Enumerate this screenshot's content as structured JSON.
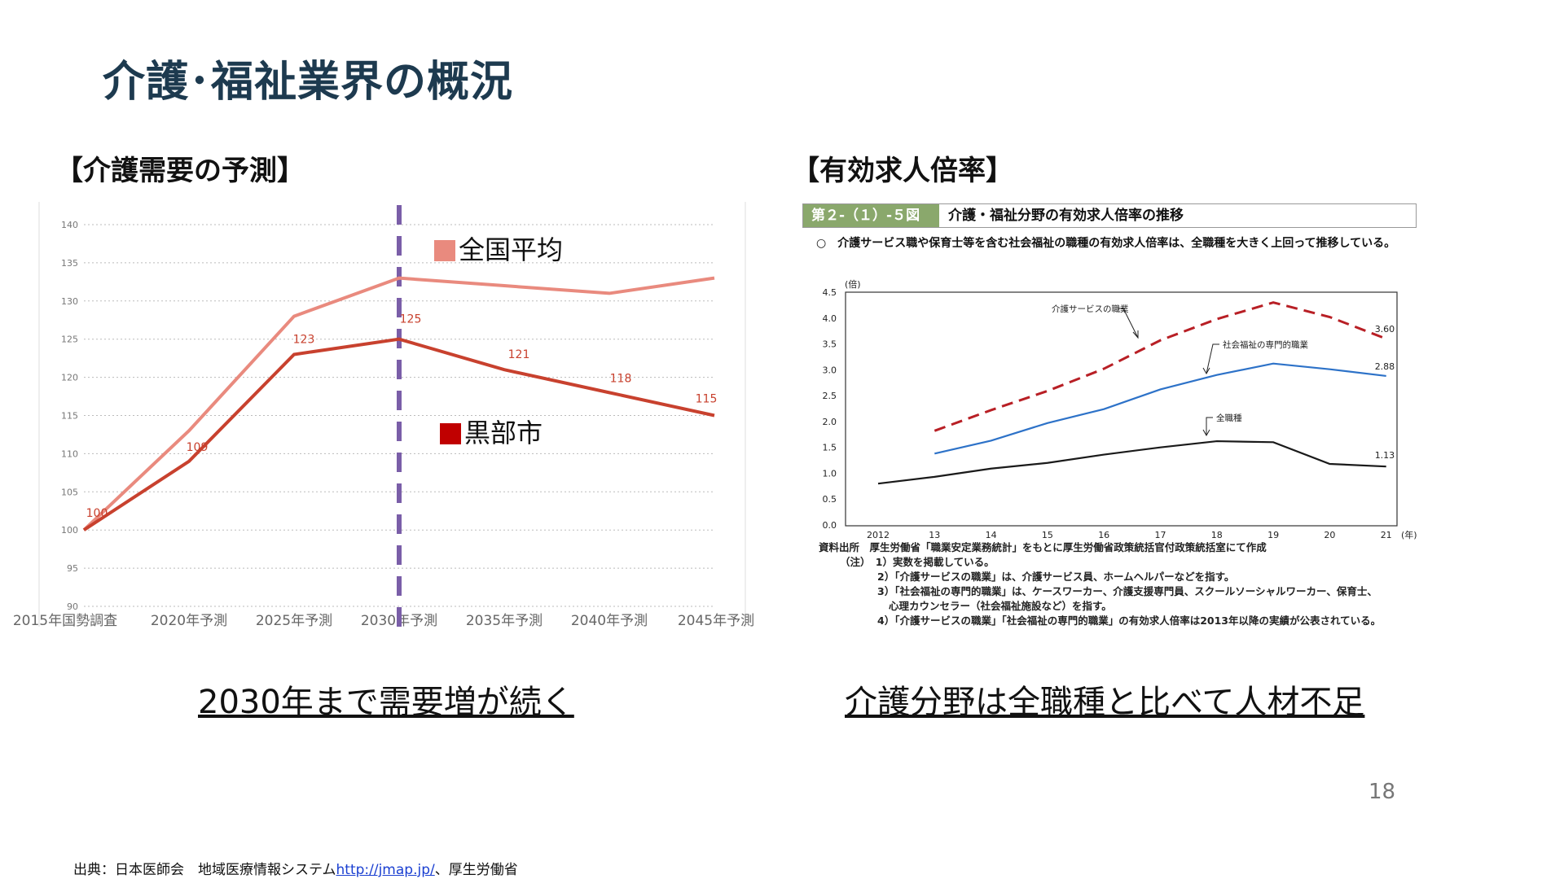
{
  "slide": {
    "title": "介護･福祉業界の概況",
    "page_number": "18"
  },
  "left": {
    "heading": "【介護需要の予測】",
    "caption": "2030年まで需要増が続く",
    "legend_national": "全国平均",
    "legend_city": "黒部市"
  },
  "right": {
    "heading": "【有効求人倍率】",
    "caption": "介護分野は全職種と比べて人材不足",
    "figure_number": "第２-（１）-５図",
    "figure_title": "介護・福祉分野の有効求人倍率の推移",
    "description": "○　介護サービス職や保育士等を含む社会福祉の職種の有効求人倍率は、全職種を大きく上回って推移している。",
    "unit_label": "(倍)",
    "notes": [
      "資料出所　厚生労働省「職業安定業務統計」をもとに厚生労働省政策統括官付政策統括室にて作成",
      "（注）　1）実数を掲載している。",
      "2）「介護サービスの職業」は、介護サービス員、ホームヘルパーなどを指す。",
      "3）「社会福祉の専門的職業」は、ケースワーカー、介護支援専門員、スクールソーシャルワーカー、保育士、",
      "心理カウンセラー（社会福祉施設など）を指す。",
      "4）「介護サービスの職業」「社会福祉の専門的職業」の有効求人倍率は2013年以降の実績が公表されている。"
    ]
  },
  "source": {
    "prefix": "出典：日本医師会　地域医療情報システム",
    "link": "http://jmap.jp/",
    "suffix": "、厚生労働省"
  },
  "colors": {
    "national": "#e98a7e",
    "city": "#c8412e",
    "divider": "#7a5ea8",
    "care_service": "#b81f25",
    "social_welfare": "#2d72c8",
    "all_jobs": "#1a1a1a"
  },
  "chart_data": [
    {
      "type": "line",
      "title": "介護需要の予測",
      "categories": [
        "2015年国勢調査",
        "2020年予測",
        "2025年予測",
        "2030年予測",
        "2035年予測",
        "2040年予測",
        "2045年予測"
      ],
      "series": [
        {
          "name": "全国平均",
          "values": [
            100,
            113,
            128,
            133,
            132,
            131,
            133
          ]
        },
        {
          "name": "黒部市",
          "values": [
            100,
            109,
            123,
            125,
            121,
            118,
            115
          ]
        }
      ],
      "data_labels": [
        "100",
        "109",
        "123",
        "125",
        "121",
        "118",
        "115"
      ],
      "ylim": [
        90,
        140
      ],
      "yticks": [
        90,
        95,
        100,
        105,
        110,
        115,
        120,
        125,
        130,
        135,
        140
      ],
      "divider_category": "2030年予測"
    },
    {
      "type": "line",
      "title": "介護・福祉分野の有効求人倍率の推移",
      "x": [
        "2012",
        "13",
        "14",
        "15",
        "16",
        "17",
        "18",
        "19",
        "20",
        "21"
      ],
      "x_unit": "(年)",
      "y_unit": "(倍)",
      "ylim": [
        0,
        4.5
      ],
      "yticks": [
        "0.0",
        "0.5",
        "1.0",
        "1.5",
        "2.0",
        "2.5",
        "3.0",
        "3.5",
        "4.0",
        "4.5"
      ],
      "series": [
        {
          "name": "介護サービスの職業",
          "values": [
            null,
            1.82,
            2.22,
            2.59,
            3.02,
            3.57,
            3.98,
            4.3,
            4.02,
            3.6
          ],
          "end_label": "3.60"
        },
        {
          "name": "社会福祉の専門的職業",
          "values": [
            null,
            1.38,
            1.63,
            1.97,
            2.24,
            2.62,
            2.9,
            3.12,
            3.01,
            2.88
          ],
          "end_label": "2.88"
        },
        {
          "name": "全職種",
          "values": [
            0.8,
            0.93,
            1.09,
            1.2,
            1.36,
            1.5,
            1.62,
            1.6,
            1.18,
            1.13
          ],
          "end_label": "1.13"
        }
      ]
    }
  ]
}
